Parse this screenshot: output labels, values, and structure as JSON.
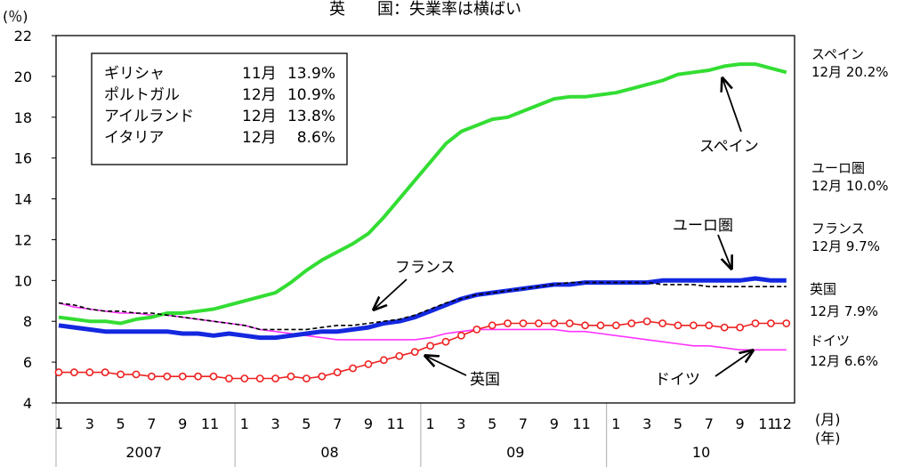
{
  "chart_data": {
    "type": "line",
    "title": "英　　国：失業率は横ばい",
    "y_unit_label": "(％)",
    "x_unit_label_month": "(月)",
    "x_unit_label_year": "(年)",
    "ylim": [
      4,
      22
    ],
    "yticks": [
      "4",
      "6",
      "8",
      "10",
      "12",
      "14",
      "16",
      "18",
      "20",
      "22"
    ],
    "x_month_ticks": [
      "1",
      "3",
      "5",
      "7",
      "9",
      "11",
      "1",
      "3",
      "5",
      "7",
      "9",
      "11",
      "1",
      "3",
      "5",
      "7",
      "9",
      "11",
      "1",
      "3",
      "5",
      "7",
      "9",
      "11",
      "12"
    ],
    "x_month_ticks_index": [
      1,
      3,
      5,
      7,
      9,
      11,
      13,
      15,
      17,
      19,
      21,
      23,
      25,
      27,
      29,
      31,
      33,
      35,
      37,
      39,
      41,
      43,
      45,
      47,
      48
    ],
    "years": [
      "2007",
      "08",
      "09",
      "10"
    ],
    "grid": false,
    "inset_table": [
      {
        "country": "ギリシャ",
        "month": "11月",
        "value": "13.9%"
      },
      {
        "country": "ポルトガル",
        "month": "12月",
        "value": "10.9%"
      },
      {
        "country": "アイルランド",
        "month": "12月",
        "value": "13.8%"
      },
      {
        "country": "イタリア",
        "month": "12月",
        "value": "8.6%"
      }
    ],
    "right_labels": [
      {
        "series": "spain",
        "name": "スペイン",
        "value": "12月 20.2%"
      },
      {
        "series": "euro",
        "name": "ユーロ圏",
        "value": "12月 10.0%"
      },
      {
        "series": "france",
        "name": "フランス",
        "value": "12月 9.7%"
      },
      {
        "series": "uk",
        "name": "英国",
        "value": "12月 7.9%"
      },
      {
        "series": "germany",
        "name": "ドイツ",
        "value": "12月 6.6%"
      }
    ],
    "annotations": [
      {
        "series": "spain",
        "text": "スペイン"
      },
      {
        "series": "euro",
        "text": "ユーロ圏"
      },
      {
        "series": "france",
        "text": "フランス"
      },
      {
        "series": "uk",
        "text": "英国"
      },
      {
        "series": "germany",
        "text": "ドイツ"
      }
    ],
    "series": [
      {
        "key": "spain",
        "name": "スペイン",
        "color": "#33dd33",
        "values": [
          8.2,
          8.1,
          8.0,
          8.0,
          7.9,
          8.1,
          8.2,
          8.4,
          8.4,
          8.5,
          8.6,
          8.8,
          9.0,
          9.2,
          9.4,
          9.9,
          10.5,
          11.0,
          11.4,
          11.8,
          12.3,
          13.1,
          14.0,
          14.9,
          15.8,
          16.7,
          17.3,
          17.6,
          17.9,
          18.0,
          18.3,
          18.6,
          18.9,
          19.0,
          19.0,
          19.1,
          19.2,
          19.4,
          19.6,
          19.8,
          20.1,
          20.2,
          20.3,
          20.5,
          20.6,
          20.6,
          20.4,
          20.2
        ]
      },
      {
        "key": "euro",
        "name": "ユーロ圏",
        "color": "#1428e0",
        "values": [
          7.8,
          7.7,
          7.6,
          7.5,
          7.5,
          7.5,
          7.5,
          7.5,
          7.4,
          7.4,
          7.3,
          7.4,
          7.3,
          7.2,
          7.2,
          7.3,
          7.4,
          7.5,
          7.5,
          7.6,
          7.7,
          7.9,
          8.0,
          8.2,
          8.5,
          8.8,
          9.1,
          9.3,
          9.4,
          9.5,
          9.6,
          9.7,
          9.8,
          9.8,
          9.9,
          9.9,
          9.9,
          9.9,
          9.9,
          10.0,
          10.0,
          10.0,
          10.0,
          10.0,
          10.0,
          10.1,
          10.0,
          10.0
        ]
      },
      {
        "key": "france",
        "name": "フランス",
        "color": "#000000",
        "values": [
          8.9,
          8.8,
          8.6,
          8.5,
          8.5,
          8.4,
          8.4,
          8.3,
          8.2,
          8.1,
          8.0,
          7.9,
          7.8,
          7.6,
          7.6,
          7.6,
          7.6,
          7.7,
          7.8,
          7.8,
          7.9,
          8.0,
          8.1,
          8.3,
          8.6,
          8.9,
          9.1,
          9.3,
          9.4,
          9.5,
          9.6,
          9.7,
          9.8,
          9.9,
          9.9,
          9.9,
          9.9,
          9.9,
          9.9,
          9.8,
          9.8,
          9.8,
          9.7,
          9.7,
          9.7,
          9.7,
          9.7,
          9.7
        ]
      },
      {
        "key": "uk",
        "name": "英国",
        "color": "#ee2222",
        "values": [
          5.5,
          5.5,
          5.5,
          5.5,
          5.4,
          5.4,
          5.3,
          5.3,
          5.3,
          5.3,
          5.3,
          5.2,
          5.2,
          5.2,
          5.2,
          5.3,
          5.2,
          5.3,
          5.5,
          5.7,
          5.9,
          6.1,
          6.3,
          6.5,
          6.8,
          7.0,
          7.3,
          7.6,
          7.8,
          7.9,
          7.9,
          7.9,
          7.9,
          7.9,
          7.8,
          7.8,
          7.8,
          7.9,
          8.0,
          7.9,
          7.8,
          7.8,
          7.8,
          7.7,
          7.7,
          7.9,
          7.9,
          7.9
        ]
      },
      {
        "key": "germany",
        "name": "ドイツ",
        "color": "#ff33ff",
        "values": [
          8.9,
          8.7,
          8.6,
          8.5,
          8.4,
          8.4,
          8.3,
          8.3,
          8.2,
          8.1,
          8.0,
          7.9,
          7.8,
          7.6,
          7.5,
          7.4,
          7.3,
          7.2,
          7.1,
          7.1,
          7.1,
          7.1,
          7.1,
          7.1,
          7.2,
          7.4,
          7.5,
          7.6,
          7.6,
          7.6,
          7.6,
          7.6,
          7.6,
          7.5,
          7.5,
          7.4,
          7.3,
          7.2,
          7.1,
          7.0,
          6.9,
          6.8,
          6.8,
          6.7,
          6.6,
          6.6,
          6.6,
          6.6
        ]
      }
    ]
  }
}
